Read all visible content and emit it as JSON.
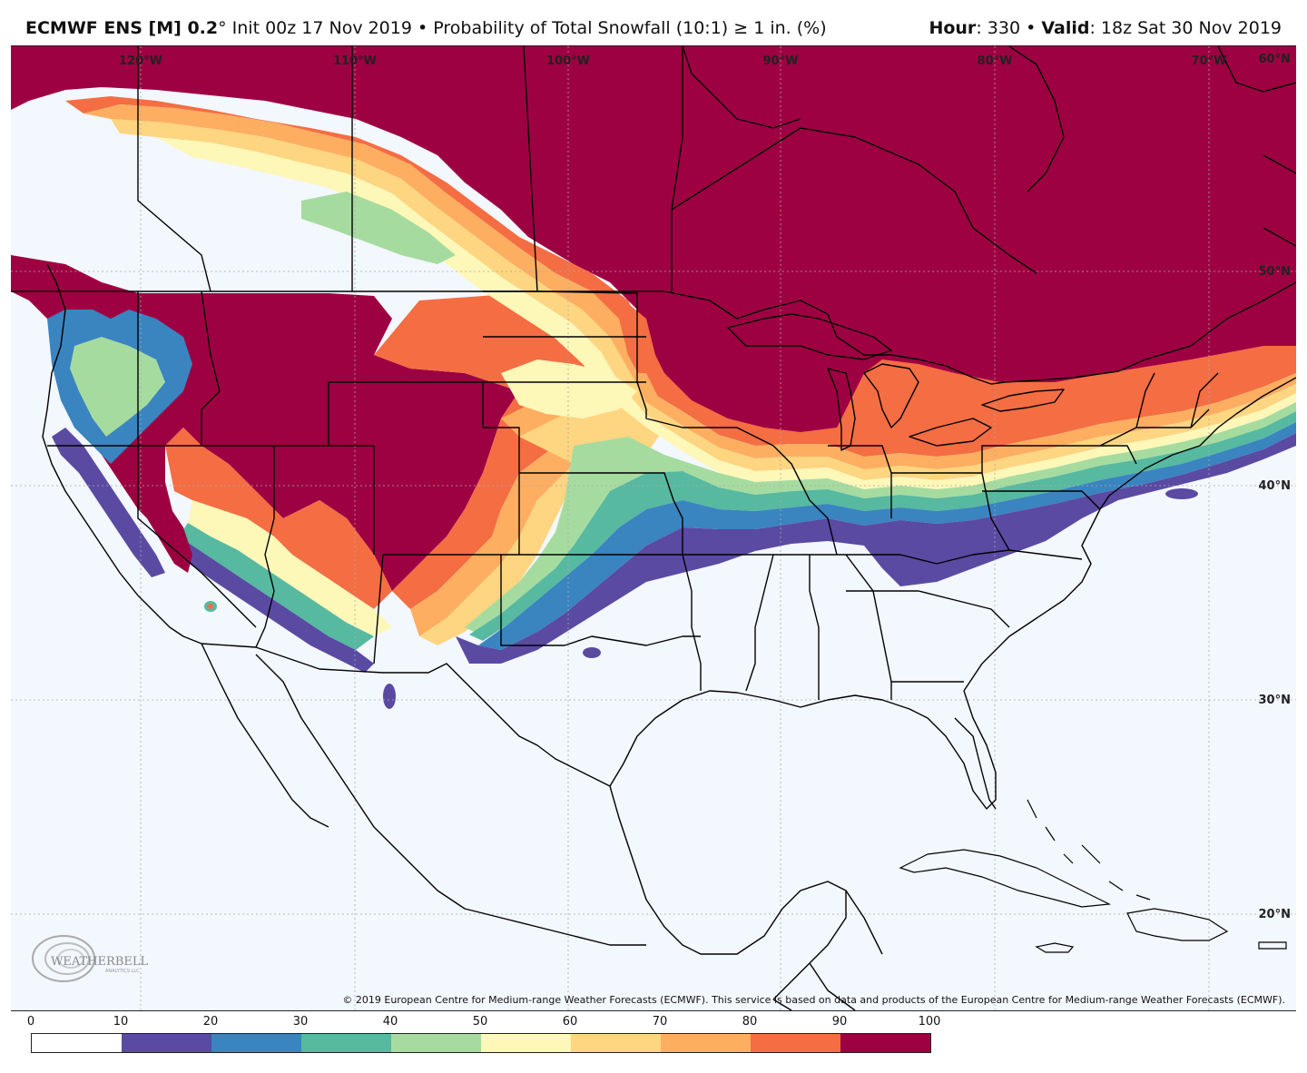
{
  "header": {
    "model": "ECMWF ENS [M] 0.2",
    "degree": "°",
    "init": "Init 00z 17 Nov 2019",
    "bullet": "•",
    "product": "Probability of Total Snowfall (10:1) ≥ 1 in. (%)",
    "hour_label": "Hour",
    "hour_value": "330",
    "valid_label": "Valid",
    "valid_value": "18z Sat 30 Nov 2019"
  },
  "map": {
    "longitude_labels": [
      "120°W",
      "110°W",
      "100°W",
      "90°W",
      "80°W",
      "70°W"
    ],
    "latitude_labels": [
      "60°N",
      "50°N",
      "40°N",
      "30°N",
      "20°N"
    ],
    "copyright": "© 2019 European Centre for Medium-range Weather Forecasts (ECMWF). This service is based on data and products of the European Centre for Medium-range Weather Forecasts (ECMWF).",
    "logo": {
      "name": "WEATHERBELL",
      "sub": "ANALYTICS LLC",
      "icon": "swirl-logo-icon"
    }
  },
  "legend": {
    "ticks": [
      "0",
      "10",
      "20",
      "30",
      "40",
      "50",
      "60",
      "70",
      "80",
      "90",
      "100"
    ],
    "colors": [
      "#ffffff",
      "#5a4aa2",
      "#3a84c0",
      "#56b9a0",
      "#a6dba0",
      "#fdf7b8",
      "#fed580",
      "#fdae61",
      "#f46d43",
      "#9e0142"
    ]
  },
  "colors": {
    "p10": "#5a4aa2",
    "p20": "#3a84c0",
    "p30": "#56b9a0",
    "p40": "#a6dba0",
    "p50": "#fdf7b8",
    "p60": "#fed580",
    "p70": "#fdae61",
    "p80": "#f46d43",
    "p90": "#9e0142",
    "background": "#f3f7fe"
  }
}
